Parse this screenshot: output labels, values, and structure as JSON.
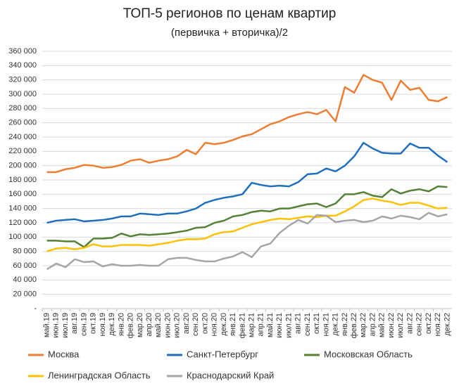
{
  "chart_data": {
    "type": "line",
    "title": "ТОП-5 регионов по ценам квартир",
    "subtitle": "(первичка + вторичка)/2",
    "categories": [
      "май.19",
      "июн.19",
      "июл.19",
      "авг.19",
      "сен.19",
      "окт.19",
      "ноя.19",
      "дек.19",
      "янв.20",
      "фев.20",
      "мар.20",
      "апр.20",
      "май.20",
      "июн.20",
      "июл.20",
      "авг.20",
      "сен.20",
      "окт.20",
      "ноя.20",
      "дек.20",
      "янв.21",
      "фев.21",
      "мар.21",
      "апр.21",
      "май.21",
      "июн.21",
      "июл.21",
      "авг.21",
      "сен.21",
      "окт.21",
      "ноя.21",
      "дек.21",
      "янв.22",
      "фев.22",
      "мар.22",
      "апр.22",
      "май.22",
      "июн.22",
      "июл.22",
      "авг.22",
      "сен.22",
      "окт.22",
      "ноя.22",
      "дек.22"
    ],
    "series": [
      {
        "name": "Москва",
        "color": "#ed7d31",
        "values": [
          191000,
          191000,
          195000,
          197000,
          201000,
          200000,
          197000,
          198000,
          201000,
          207000,
          209000,
          204000,
          207000,
          209000,
          213000,
          222000,
          216000,
          232000,
          230000,
          232000,
          236000,
          241000,
          244000,
          251000,
          258000,
          262000,
          268000,
          272000,
          275000,
          272000,
          278000,
          262000,
          310000,
          302000,
          327000,
          320000,
          316000,
          292000,
          319000,
          306000,
          309000,
          292000,
          290000,
          296000
        ]
      },
      {
        "name": "Санкт-Петербург",
        "color": "#1f6fbf",
        "values": [
          120000,
          123000,
          124000,
          125000,
          122000,
          123000,
          124000,
          126000,
          129000,
          129000,
          133000,
          132000,
          131000,
          133000,
          133000,
          136000,
          140000,
          148000,
          152000,
          155000,
          157000,
          160000,
          176000,
          173000,
          171000,
          172000,
          171000,
          177000,
          188000,
          189000,
          196000,
          192000,
          200000,
          213000,
          232000,
          224000,
          218000,
          217000,
          217000,
          231000,
          225000,
          225000,
          214000,
          205000
        ]
      },
      {
        "name": "Московская Область",
        "color": "#548235",
        "values": [
          95000,
          95000,
          94000,
          94000,
          86000,
          98000,
          98000,
          99000,
          105000,
          101000,
          104000,
          103000,
          104000,
          105000,
          107000,
          109000,
          113000,
          114000,
          120000,
          123000,
          129000,
          131000,
          135000,
          137000,
          136000,
          140000,
          140000,
          143000,
          146000,
          147000,
          142000,
          147000,
          160000,
          160000,
          163000,
          158000,
          156000,
          167000,
          161000,
          165000,
          167000,
          164000,
          171000,
          170000
        ]
      },
      {
        "name": "Ленинградская Область",
        "color": "#ffc000",
        "values": [
          80000,
          84000,
          85000,
          83000,
          85000,
          90000,
          87000,
          87000,
          89000,
          89000,
          89000,
          88000,
          90000,
          92000,
          95000,
          97000,
          97000,
          98000,
          104000,
          107000,
          108000,
          113000,
          118000,
          121000,
          124000,
          126000,
          125000,
          127000,
          129000,
          128000,
          130000,
          130000,
          136000,
          143000,
          152000,
          154000,
          151000,
          149000,
          145000,
          148000,
          148000,
          144000,
          140000,
          141000
        ]
      },
      {
        "name": "Краснодарский Край",
        "color": "#a5a5a5",
        "values": [
          55000,
          63000,
          58000,
          69000,
          65000,
          66000,
          59000,
          62000,
          60000,
          60000,
          61000,
          60000,
          60000,
          69000,
          71000,
          71000,
          68000,
          66000,
          66000,
          70000,
          73000,
          79000,
          72000,
          87000,
          91000,
          106000,
          116000,
          124000,
          119000,
          131000,
          130000,
          121000,
          123000,
          124000,
          121000,
          123000,
          129000,
          126000,
          130000,
          128000,
          125000,
          134000,
          129000,
          132000
        ]
      }
    ],
    "ylim": [
      0,
      360000
    ],
    "yticks": [
      {
        "value": 0,
        "label": "-"
      },
      {
        "value": 20000,
        "label": "20 000"
      },
      {
        "value": 40000,
        "label": "40 000"
      },
      {
        "value": 60000,
        "label": "60 000"
      },
      {
        "value": 80000,
        "label": "80 000"
      },
      {
        "value": 100000,
        "label": "100 000"
      },
      {
        "value": 120000,
        "label": "120 000"
      },
      {
        "value": 140000,
        "label": "140 000"
      },
      {
        "value": 160000,
        "label": "160 000"
      },
      {
        "value": 180000,
        "label": "180 000"
      },
      {
        "value": 200000,
        "label": "200 000"
      },
      {
        "value": 220000,
        "label": "220 000"
      },
      {
        "value": 240000,
        "label": "240 000"
      },
      {
        "value": 260000,
        "label": "260 000"
      },
      {
        "value": 280000,
        "label": "280 000"
      },
      {
        "value": 300000,
        "label": "300 000"
      },
      {
        "value": 320000,
        "label": "320 000"
      },
      {
        "value": 340000,
        "label": "340 000"
      },
      {
        "value": 360000,
        "label": "360 000"
      }
    ],
    "grid": true
  }
}
